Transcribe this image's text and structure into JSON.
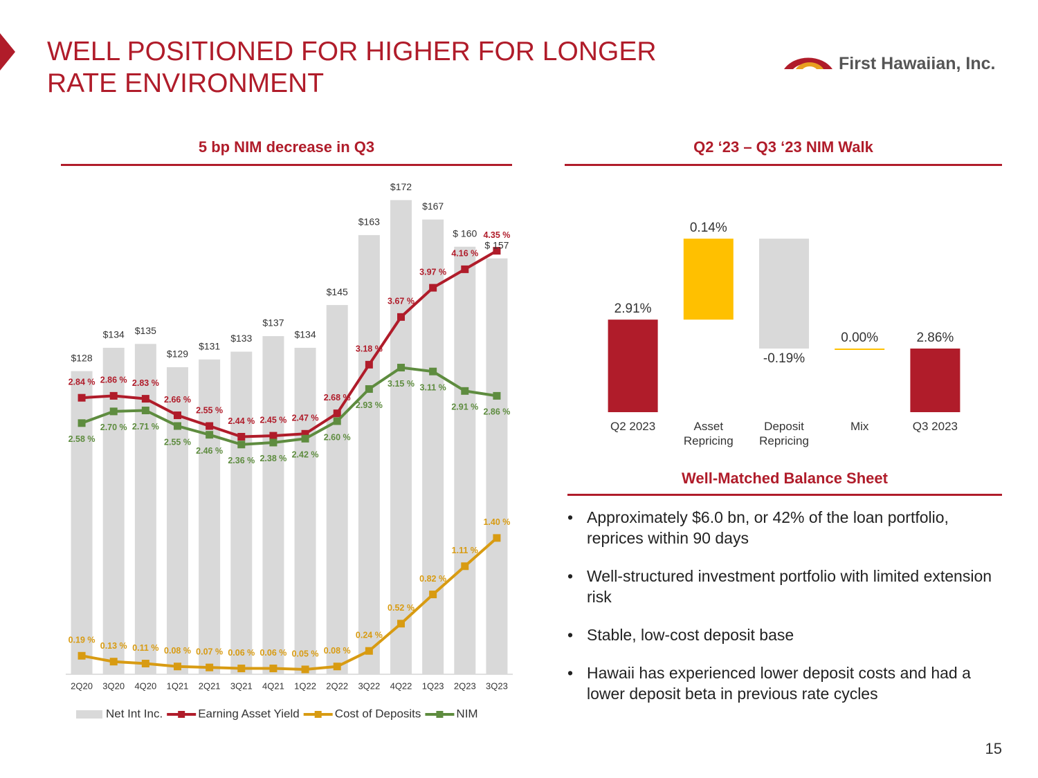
{
  "header": {
    "title": "WELL POSITIONED FOR HIGHER FOR LONGER RATE ENVIRONMENT",
    "logo": "First Hawaiian, Inc."
  },
  "chart_data": [
    {
      "type": "combo",
      "title": "5 bp NIM decrease in Q3",
      "categories": [
        "2Q20",
        "3Q20",
        "4Q20",
        "1Q21",
        "2Q21",
        "3Q21",
        "4Q21",
        "1Q22",
        "2Q22",
        "3Q22",
        "4Q22",
        "1Q23",
        "2Q23",
        "3Q23"
      ],
      "ylim": [
        50,
        179
      ],
      "y2lim": [
        0,
        5.15
      ],
      "series": [
        {
          "name": "Net Int Inc.",
          "type": "bar",
          "color": "#d9d9d9",
          "values": [
            128,
            134,
            135,
            129,
            131,
            133,
            137,
            134,
            145,
            163,
            172,
            167,
            160,
            157
          ],
          "value_labels": [
            "$128",
            "$134",
            "$135",
            "$129",
            "$131",
            "$133",
            "$137",
            "$134",
            "$145",
            "$163",
            "$172",
            "$167",
            "$ 160",
            "$ 157"
          ]
        },
        {
          "name": "Earning Asset Yield",
          "type": "line",
          "axis": "y2",
          "color": "#b01c2a",
          "values": [
            2.84,
            2.86,
            2.83,
            2.66,
            2.55,
            2.44,
            2.45,
            2.47,
            2.68,
            3.18,
            3.67,
            3.97,
            4.16,
            4.35
          ],
          "value_labels": [
            "2.84 %",
            "2.86 %",
            "2.83 %",
            "2.66 %",
            "2.55 %",
            "2.44 %",
            "2.45 %",
            "2.47 %",
            "2.68 %",
            "3.18 %",
            "3.67 %",
            "3.97 %",
            "4.16 %",
            "4.35 %"
          ]
        },
        {
          "name": "Cost of Deposits",
          "type": "line",
          "axis": "y2",
          "color": "#d89b12",
          "values": [
            0.19,
            0.13,
            0.11,
            0.08,
            0.07,
            0.06,
            0.06,
            0.05,
            0.08,
            0.24,
            0.52,
            0.82,
            1.11,
            1.4
          ],
          "value_labels": [
            "0.19 %",
            "0.13 %",
            "0.11 %",
            "0.08 %",
            "0.07 %",
            "0.06 %",
            "0.06 %",
            "0.05 %",
            "0.08 %",
            "0.24 %",
            "0.52 %",
            "0.82 %",
            "1.11 %",
            "1.40 %"
          ]
        },
        {
          "name": "NIM",
          "type": "line",
          "axis": "y2",
          "color": "#5e8c3f",
          "values": [
            2.58,
            2.7,
            2.71,
            2.55,
            2.46,
            2.36,
            2.38,
            2.42,
            2.6,
            2.93,
            3.15,
            3.11,
            2.91,
            2.86
          ],
          "value_labels": [
            "2.58 %",
            "2.70 %",
            "2.71 %",
            "2.55 %",
            "2.46 %",
            "2.36 %",
            "2.38 %",
            "2.42 %",
            "2.60 %",
            "2.93 %",
            "3.15 %",
            "3.11 %",
            "2.91 %",
            "2.86 %"
          ]
        }
      ]
    },
    {
      "type": "waterfall",
      "title": "Q2 ‘23 – Q3 ‘23 NIM Walk",
      "categories": [
        "Q2 2023",
        "Asset Repricing",
        "Deposit Repricing",
        "Mix",
        "Q3 2023"
      ],
      "values": [
        2.91,
        0.14,
        -0.19,
        0.0,
        2.86
      ],
      "value_labels": [
        "2.91%",
        "0.14%",
        "-0.19%",
        "0.00%",
        "2.86%"
      ],
      "measures": [
        "absolute",
        "relative",
        "relative",
        "relative",
        "absolute"
      ],
      "colors": [
        "#b01c2a",
        "#ffc000",
        "#d9d9d9",
        "#ffc000",
        "#b01c2a"
      ],
      "ylim": [
        2.75,
        3.08
      ]
    }
  ],
  "balance_sheet": {
    "title": "Well-Matched Balance Sheet",
    "bullets": [
      "Approximately $6.0 bn, or 42% of the loan portfolio, reprices within 90 days",
      "Well-structured investment portfolio with limited extension risk",
      "Stable, low-cost deposit base",
      "Hawaii has experienced lower deposit costs and had a lower deposit beta in previous rate cycles"
    ]
  },
  "page_number": "15"
}
